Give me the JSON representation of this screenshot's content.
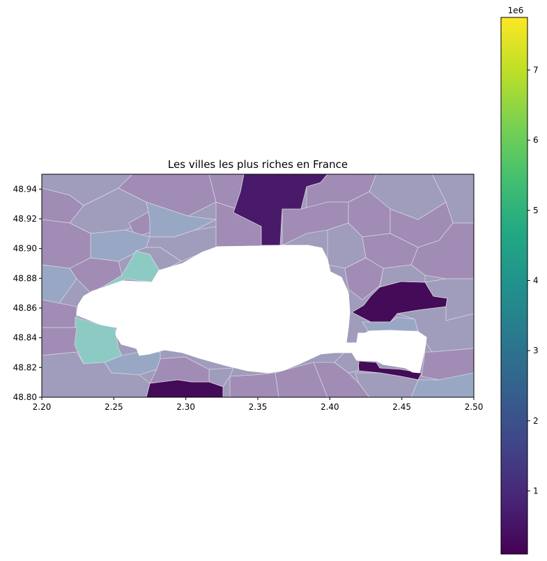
{
  "title": "Les villes les plus riches en France",
  "x_axis": {
    "range": [
      2.2,
      2.5
    ],
    "ticks": [
      2.2,
      2.25,
      2.3,
      2.35,
      2.4,
      2.45,
      2.5
    ],
    "tick_labels": [
      "2.20",
      "2.25",
      "2.30",
      "2.35",
      "2.40",
      "2.45",
      "2.50"
    ]
  },
  "y_axis": {
    "range": [
      48.8,
      48.95
    ],
    "ticks": [
      48.8,
      48.82,
      48.84,
      48.86,
      48.88,
      48.9,
      48.92,
      48.94
    ],
    "tick_labels": [
      "48.80",
      "48.82",
      "48.84",
      "48.86",
      "48.88",
      "48.90",
      "48.92",
      "48.94"
    ]
  },
  "colorbar": {
    "colormap": "viridis",
    "range": [
      0.1,
      7.75
    ],
    "ticks": [
      1,
      2,
      3,
      4,
      5,
      6,
      7
    ],
    "tick_labels": [
      "1",
      "2",
      "3",
      "4",
      "5",
      "6",
      "7"
    ],
    "offset_label": "1e6"
  },
  "palette": {
    "commune_mauve": "#a08cb4",
    "commune_greyblue": "#a09cbc",
    "commune_steel": "#98a8c4",
    "commune_teal": "#8ecac4",
    "commune_dark": "#4a1a6a",
    "commune_darkest": "#440b58",
    "paris_void": "#ffffff",
    "border": "#d8d4e0"
  }
}
